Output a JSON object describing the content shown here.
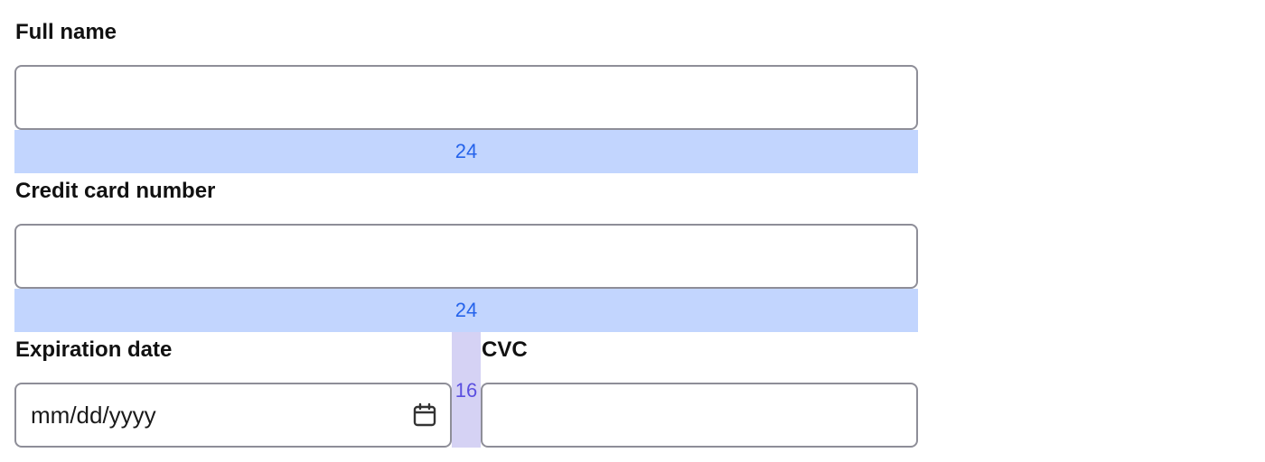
{
  "form": {
    "full_name": {
      "label": "Full name",
      "value": ""
    },
    "card_number": {
      "label": "Credit card number",
      "value": ""
    },
    "expiration": {
      "label": "Expiration date",
      "placeholder": "mm/dd/yyyy",
      "icon": "calendar-icon"
    },
    "cvc": {
      "label": "CVC",
      "value": ""
    }
  },
  "spacing": {
    "after_full_name": "24",
    "after_card_number": "24",
    "column_gap": "16"
  },
  "colors": {
    "vertical_spacing": "#c2d5fe",
    "column_gap": "#d5d2f4"
  }
}
